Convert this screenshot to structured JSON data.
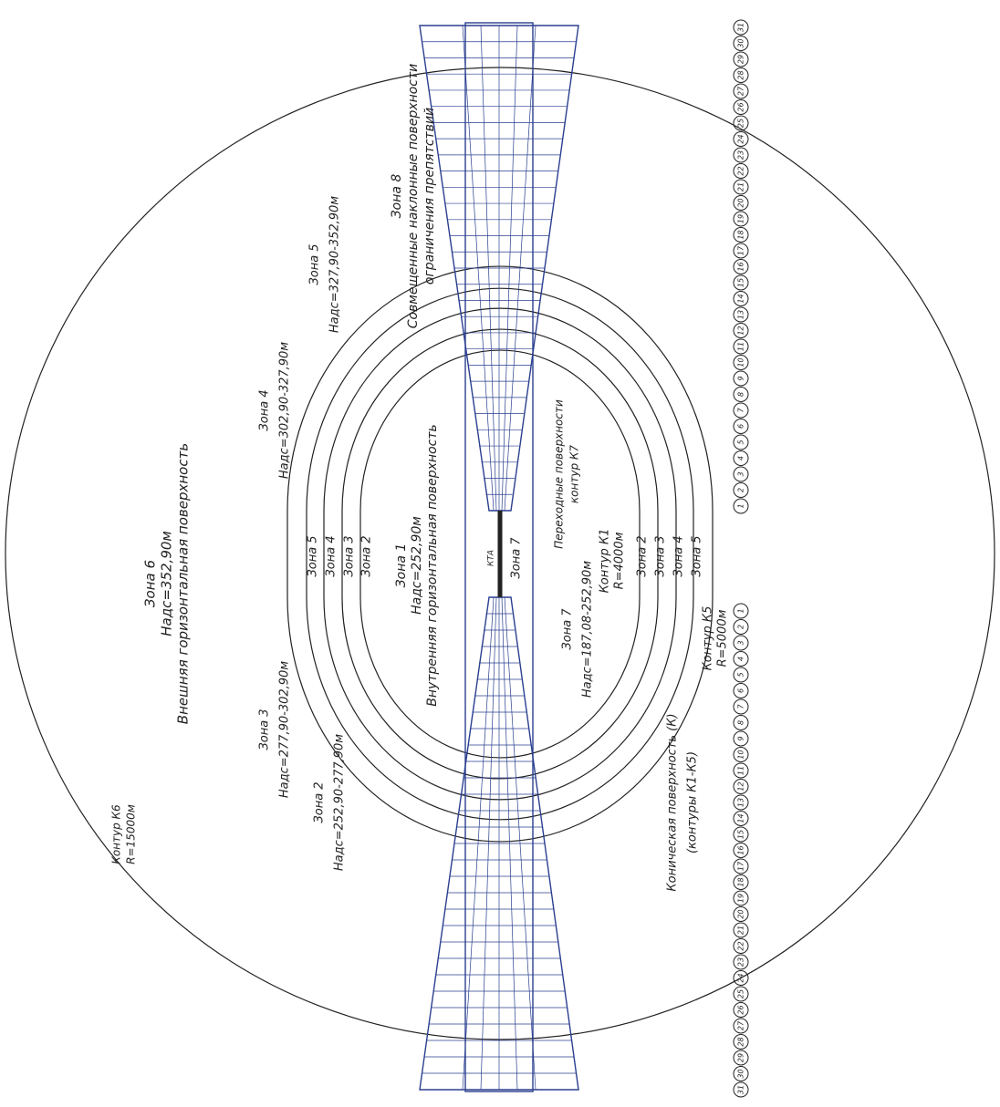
{
  "labels": [
    {
      "lines": [
        "Зона 6",
        "Надс=352,90м",
        "Внешняя горизонтальная поверхность"
      ]
    },
    {
      "lines": [
        "Зона 1",
        "Надс=252,90м",
        "Внутренняя горизонтальная поверхность"
      ]
    },
    {
      "lines": [
        "Зона 8",
        "Совмещенные наклонные поверхности",
        "ограничения препятствий"
      ]
    },
    {
      "lines": [
        "Зона 5",
        "Надс=327,90-352,90м"
      ]
    },
    {
      "lines": [
        "Зона 4",
        "Надс=302,90-327,90м"
      ]
    },
    {
      "lines": [
        "Зона 3",
        "Надс=277,90-302,90м"
      ]
    },
    {
      "lines": [
        "Зона 2",
        "Надс=252,90-277,90м"
      ]
    },
    {
      "lines": [
        "Зона 7",
        "Надс=187,08-252,90м"
      ]
    },
    {
      "lines": [
        "Переходные поверхности",
        "контур К7"
      ]
    },
    {
      "lines": [
        "Контур К1",
        "R=4000м"
      ]
    },
    {
      "lines": [
        "Контур К5",
        "R=5000м"
      ]
    },
    {
      "lines": [
        "Контур К6",
        "R=15000м"
      ]
    },
    {
      "lines": [
        "Коническая поверхность (К)",
        "(контуры К1-К5)"
      ]
    }
  ],
  "ring_zones_left": [
    "Зона 5",
    "Зона 4",
    "Зона 3",
    "Зона 2"
  ],
  "ring_zones_right": [
    "Зона 2",
    "Зона 3",
    "Зона 4",
    "Зона 5"
  ],
  "runway_zone": "Зона 7",
  "runway_code": "КТА",
  "circle_numbers": [
    "1",
    "2",
    "3",
    "4",
    "5",
    "6",
    "7",
    "8",
    "9",
    "10",
    "11",
    "12",
    "13",
    "14",
    "15",
    "16",
    "17",
    "18",
    "19",
    "20",
    "21",
    "22",
    "23",
    "24",
    "25",
    "26",
    "27",
    "28",
    "29",
    "30",
    "31"
  ]
}
